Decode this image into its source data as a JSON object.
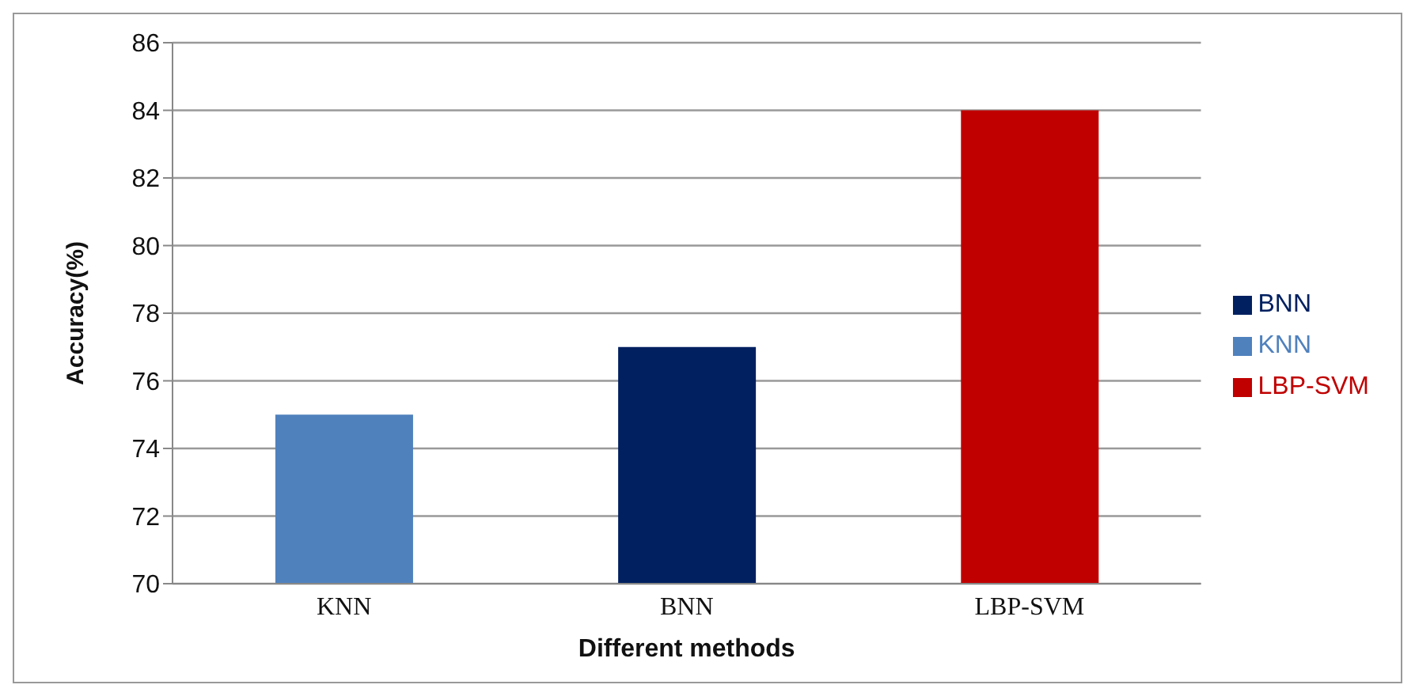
{
  "chart_data": {
    "type": "bar",
    "xlabel": "Different methods",
    "ylabel": "Accuracy(%)",
    "categories": [
      "KNN",
      "BNN",
      "LBP-SVM"
    ],
    "stacked": true,
    "series": [
      {
        "name": "KNN",
        "color": "#4f81bd",
        "values": [
          75,
          null,
          null
        ]
      },
      {
        "name": "BNN",
        "color": "#002060",
        "values": [
          null,
          77,
          null
        ]
      },
      {
        "name": "LBP-SVM",
        "color": "#c00000",
        "values": [
          null,
          null,
          84
        ]
      }
    ],
    "ylim": [
      70,
      86
    ],
    "yticks": [
      70,
      72,
      74,
      76,
      78,
      80,
      82,
      84,
      86
    ],
    "grid": "y",
    "legend": "right"
  }
}
